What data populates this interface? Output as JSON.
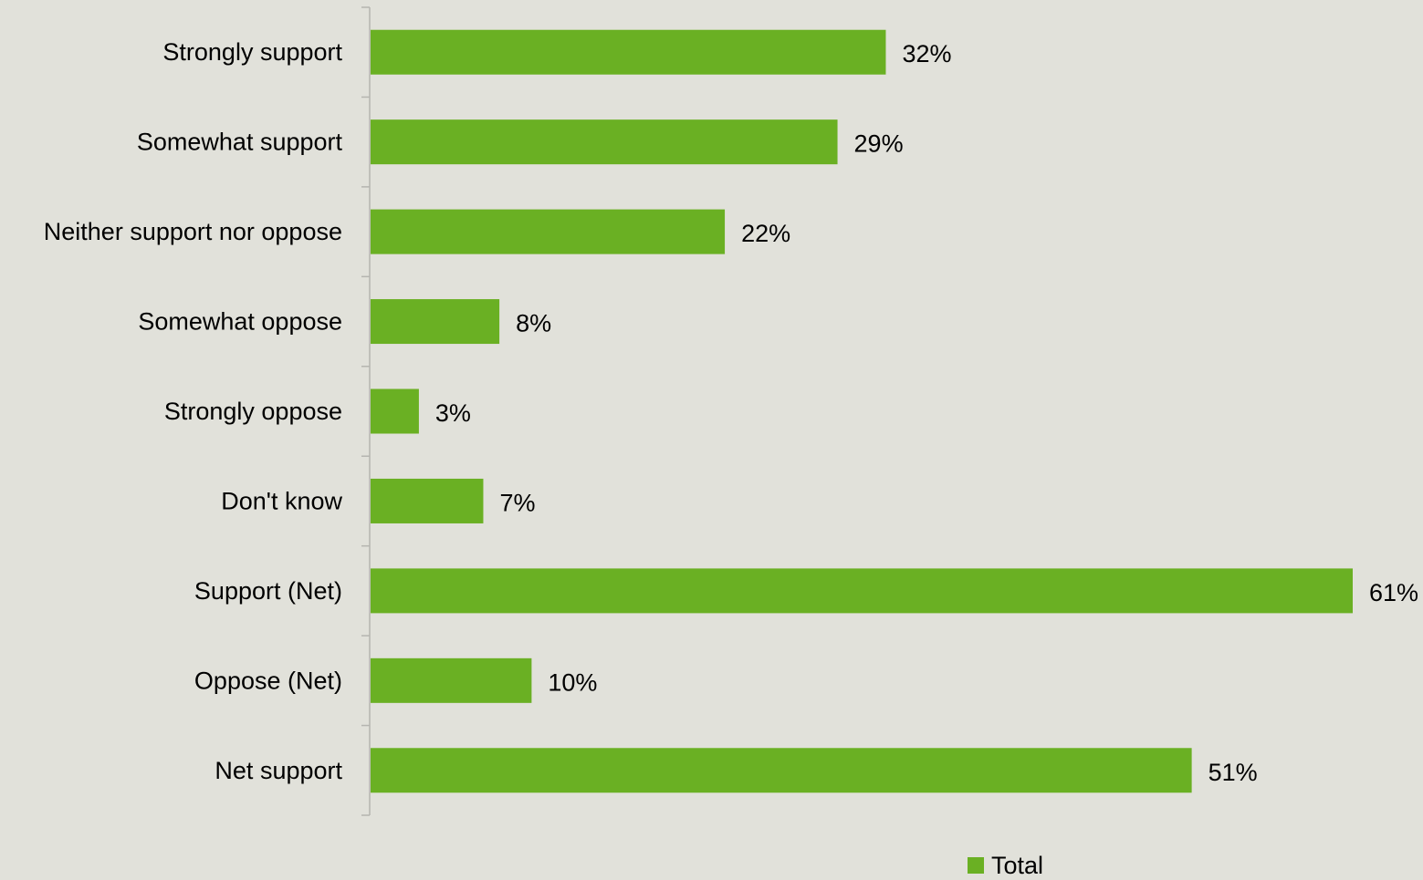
{
  "chart_data": {
    "type": "bar",
    "orientation": "horizontal",
    "categories": [
      "Strongly support",
      "Somewhat support",
      "Neither support nor oppose",
      "Somewhat oppose",
      "Strongly oppose",
      "Don't know",
      "Support (Net)",
      "Oppose (Net)",
      "Net support"
    ],
    "series": [
      {
        "name": "Total",
        "values": [
          32,
          29,
          22,
          8,
          3,
          7,
          61,
          10,
          51
        ],
        "labels": [
          "32%",
          "29%",
          "22%",
          "8%",
          "3%",
          "7%",
          "61%",
          "10%",
          "51%"
        ],
        "color": "#6ab023"
      }
    ],
    "title": "",
    "xlabel": "",
    "ylabel": "",
    "xlim": [
      0,
      61
    ],
    "grid": false,
    "legend_position": "bottom"
  },
  "colors": {
    "background": "#e1e1da",
    "bar": "#6ab023",
    "axis": "#b5b5b0",
    "text": "#000000"
  }
}
